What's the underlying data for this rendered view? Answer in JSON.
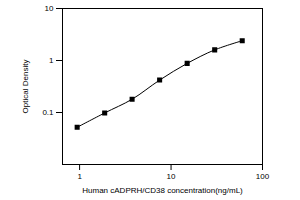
{
  "chart_data": {
    "type": "line",
    "x": [
      0.94,
      1.88,
      3.75,
      7.5,
      15,
      30,
      60
    ],
    "values": [
      0.052,
      0.098,
      0.18,
      0.42,
      0.88,
      1.6,
      2.4
    ],
    "xlabel": "Human cADPRH/CD38 concentration(ng/mL)",
    "ylabel": "Optical Density",
    "xlim": [
      0.65,
      100
    ],
    "ylim": [
      0.01,
      10
    ],
    "xticks": [
      1,
      10,
      100
    ],
    "yticks": [
      0.1,
      1,
      10
    ],
    "log": true,
    "grid": false,
    "color": "#000000",
    "marker": "square"
  }
}
